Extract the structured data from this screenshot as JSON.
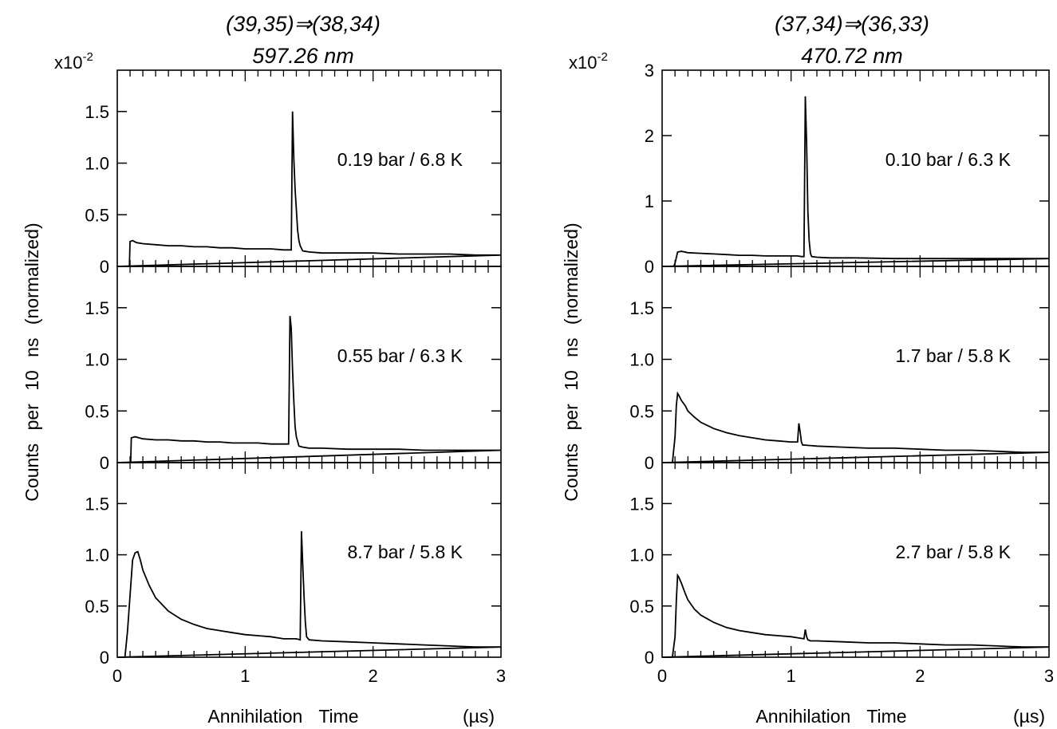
{
  "chart_data": [
    {
      "type": "line",
      "title": "(39,35)⇒(38,34)",
      "subtitle": "597.26 nm",
      "multiplier": "x10",
      "multiplier_exp": "-2",
      "ylabel": "Counts per 10 ns (normalized)",
      "xlabel": "Annihilation Time",
      "xunit": "(µs)",
      "xlim": [
        0,
        3
      ],
      "xticks": [
        "0",
        "1",
        "2",
        "3"
      ],
      "grid": false,
      "panels": [
        {
          "annotation": "0.19 bar / 6.8 K",
          "ylim": [
            0,
            1.9
          ],
          "yticks": [
            0,
            0.5,
            1.0,
            1.5
          ],
          "ytick_labels": [
            "0",
            "0.5",
            "1.0",
            "1.5"
          ],
          "series": [
            {
              "x": [
                0.09,
                0.095,
                0.1,
                0.12,
                0.15,
                0.2,
                0.3,
                0.4,
                0.5,
                0.6,
                0.7,
                0.8,
                0.9,
                1.0,
                1.1,
                1.2,
                1.3,
                1.36,
                1.37,
                1.38,
                1.39,
                1.4,
                1.41,
                1.42,
                1.43,
                1.45,
                1.5,
                1.6,
                1.8,
                2.0,
                2.2,
                2.4,
                2.6,
                2.8,
                3.0
              ],
              "y": [
                0,
                0,
                0.24,
                0.25,
                0.23,
                0.22,
                0.21,
                0.2,
                0.2,
                0.19,
                0.19,
                0.18,
                0.18,
                0.17,
                0.17,
                0.17,
                0.16,
                0.16,
                1.5,
                1.05,
                0.75,
                0.55,
                0.35,
                0.25,
                0.2,
                0.15,
                0.14,
                0.13,
                0.13,
                0.13,
                0.12,
                0.12,
                0.12,
                0.11,
                0.11
              ]
            }
          ]
        },
        {
          "annotation": "0.55 bar / 6.3 K",
          "ylim": [
            0,
            1.9
          ],
          "yticks": [
            0,
            0.5,
            1.0,
            1.5
          ],
          "ytick_labels": [
            "0",
            "0.5",
            "1.0",
            "1.5"
          ],
          "series": [
            {
              "x": [
                0.1,
                0.105,
                0.11,
                0.14,
                0.2,
                0.3,
                0.4,
                0.5,
                0.6,
                0.7,
                0.8,
                0.9,
                1.0,
                1.1,
                1.2,
                1.3,
                1.34,
                1.35,
                1.36,
                1.37,
                1.38,
                1.39,
                1.4,
                1.42,
                1.45,
                1.5,
                1.6,
                1.8,
                2.0,
                2.2,
                2.4,
                2.6,
                2.8,
                3.0
              ],
              "y": [
                0,
                0,
                0.24,
                0.25,
                0.23,
                0.22,
                0.22,
                0.21,
                0.21,
                0.2,
                0.2,
                0.19,
                0.19,
                0.19,
                0.18,
                0.18,
                0.18,
                1.42,
                1.3,
                0.9,
                0.6,
                0.35,
                0.25,
                0.16,
                0.15,
                0.14,
                0.14,
                0.13,
                0.13,
                0.13,
                0.12,
                0.12,
                0.12,
                0.12
              ]
            }
          ]
        },
        {
          "annotation": "8.7 bar / 5.8 K",
          "ylim": [
            0,
            1.9
          ],
          "yticks": [
            0,
            0.5,
            1.0,
            1.5
          ],
          "ytick_labels": [
            "0",
            "0.5",
            "1.0",
            "1.5"
          ],
          "series": [
            {
              "x": [
                0.06,
                0.08,
                0.1,
                0.12,
                0.14,
                0.16,
                0.18,
                0.2,
                0.25,
                0.3,
                0.4,
                0.5,
                0.6,
                0.7,
                0.8,
                0.9,
                1.0,
                1.1,
                1.2,
                1.3,
                1.4,
                1.43,
                1.44,
                1.45,
                1.46,
                1.47,
                1.48,
                1.5,
                1.6,
                1.8,
                2.0,
                2.2,
                2.4,
                2.6,
                2.8,
                3.0
              ],
              "y": [
                0,
                0.25,
                0.6,
                0.95,
                1.02,
                1.03,
                0.95,
                0.85,
                0.7,
                0.58,
                0.45,
                0.37,
                0.32,
                0.28,
                0.26,
                0.24,
                0.22,
                0.21,
                0.2,
                0.18,
                0.18,
                0.17,
                1.23,
                0.9,
                0.6,
                0.35,
                0.2,
                0.17,
                0.16,
                0.15,
                0.14,
                0.13,
                0.12,
                0.11,
                0.1,
                0.1
              ]
            }
          ]
        }
      ]
    },
    {
      "type": "line",
      "title": "(37,34)⇒(36,33)",
      "subtitle": "470.72 nm",
      "multiplier": "x10",
      "multiplier_exp": "-2",
      "ylabel": "Counts per 10 ns (normalized)",
      "xlabel": "Annihilation Time",
      "xunit": "(µs)",
      "xlim": [
        0,
        3
      ],
      "xticks": [
        "0",
        "1",
        "2",
        "3"
      ],
      "grid": false,
      "panels": [
        {
          "annotation": "0.10 bar / 6.3 K",
          "ylim": [
            0,
            3.0
          ],
          "yticks": [
            0,
            1,
            2,
            3
          ],
          "ytick_labels": [
            "0",
            "1",
            "2",
            "3"
          ],
          "series": [
            {
              "x": [
                0.09,
                0.1,
                0.12,
                0.15,
                0.2,
                0.3,
                0.4,
                0.5,
                0.6,
                0.7,
                0.8,
                0.9,
                1.0,
                1.05,
                1.08,
                1.1,
                1.11,
                1.12,
                1.13,
                1.14,
                1.15,
                1.16,
                1.2,
                1.3,
                1.5,
                1.8,
                2.0,
                2.2,
                2.4,
                2.6,
                2.8,
                3.0
              ],
              "y": [
                0,
                0.05,
                0.22,
                0.23,
                0.21,
                0.2,
                0.19,
                0.18,
                0.17,
                0.17,
                0.16,
                0.16,
                0.16,
                0.16,
                0.15,
                0.15,
                2.6,
                1.9,
                0.85,
                0.4,
                0.2,
                0.15,
                0.14,
                0.13,
                0.13,
                0.12,
                0.12,
                0.12,
                0.12,
                0.12,
                0.12,
                0.12
              ]
            }
          ]
        },
        {
          "annotation": "1.7 bar / 5.8 K",
          "ylim": [
            0,
            1.9
          ],
          "yticks": [
            0,
            0.5,
            1.0,
            1.5
          ],
          "ytick_labels": [
            "0",
            "0.5",
            "1.0",
            "1.5"
          ],
          "series": [
            {
              "x": [
                0.08,
                0.1,
                0.11,
                0.12,
                0.13,
                0.15,
                0.18,
                0.2,
                0.25,
                0.3,
                0.4,
                0.5,
                0.6,
                0.7,
                0.8,
                0.9,
                1.0,
                1.05,
                1.06,
                1.07,
                1.08,
                1.09,
                1.1,
                1.2,
                1.4,
                1.6,
                1.8,
                2.0,
                2.2,
                2.4,
                2.6,
                2.8,
                3.0
              ],
              "y": [
                0,
                0.25,
                0.55,
                0.67,
                0.65,
                0.6,
                0.55,
                0.5,
                0.44,
                0.39,
                0.33,
                0.29,
                0.26,
                0.24,
                0.22,
                0.21,
                0.2,
                0.2,
                0.38,
                0.3,
                0.2,
                0.17,
                0.17,
                0.16,
                0.15,
                0.14,
                0.14,
                0.13,
                0.12,
                0.12,
                0.11,
                0.1,
                0.1
              ]
            }
          ]
        },
        {
          "annotation": "2.7 bar / 5.8 K",
          "ylim": [
            0,
            1.9
          ],
          "yticks": [
            0,
            0.5,
            1.0,
            1.5
          ],
          "ytick_labels": [
            "0",
            "0.5",
            "1.0",
            "1.5"
          ],
          "series": [
            {
              "x": [
                0.08,
                0.1,
                0.11,
                0.12,
                0.13,
                0.15,
                0.18,
                0.2,
                0.25,
                0.3,
                0.4,
                0.5,
                0.6,
                0.7,
                0.8,
                0.9,
                1.0,
                1.05,
                1.1,
                1.11,
                1.12,
                1.13,
                1.15,
                1.2,
                1.4,
                1.6,
                1.8,
                2.0,
                2.2,
                2.4,
                2.6,
                2.8,
                3.0
              ],
              "y": [
                0,
                0.2,
                0.55,
                0.8,
                0.78,
                0.72,
                0.62,
                0.56,
                0.47,
                0.41,
                0.34,
                0.29,
                0.26,
                0.24,
                0.22,
                0.21,
                0.2,
                0.19,
                0.18,
                0.27,
                0.2,
                0.17,
                0.16,
                0.16,
                0.15,
                0.14,
                0.14,
                0.13,
                0.12,
                0.12,
                0.11,
                0.1,
                0.1
              ]
            }
          ]
        }
      ]
    }
  ]
}
